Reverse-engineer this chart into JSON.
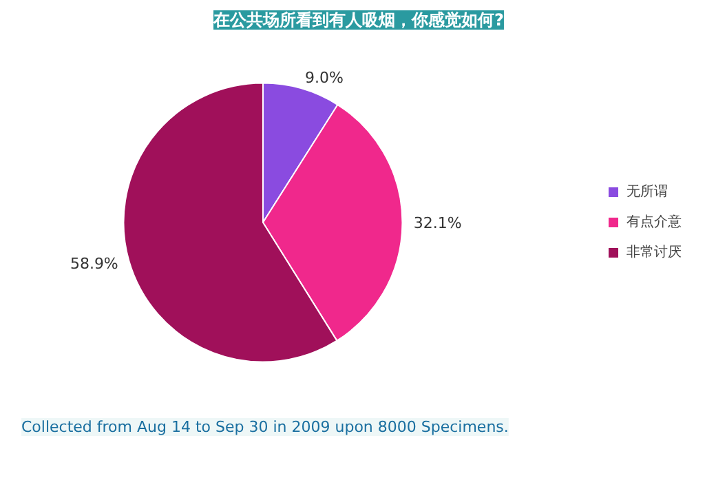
{
  "chart_data": {
    "type": "pie",
    "title": "在公共场所看到有人吸烟，你感觉如何?",
    "categories": [
      "无所谓",
      "有点介意",
      "非常讨厌"
    ],
    "values": [
      9.0,
      32.1,
      58.9
    ],
    "colors": [
      "#8a4be0",
      "#f0288c",
      "#a0105a"
    ],
    "value_labels": [
      "9.0%",
      "32.1%",
      "58.9%"
    ],
    "legend": "right",
    "annotations": [
      "Collected from Aug 14 to Sep 30 in 2009 upon 8000 Specimens."
    ]
  }
}
